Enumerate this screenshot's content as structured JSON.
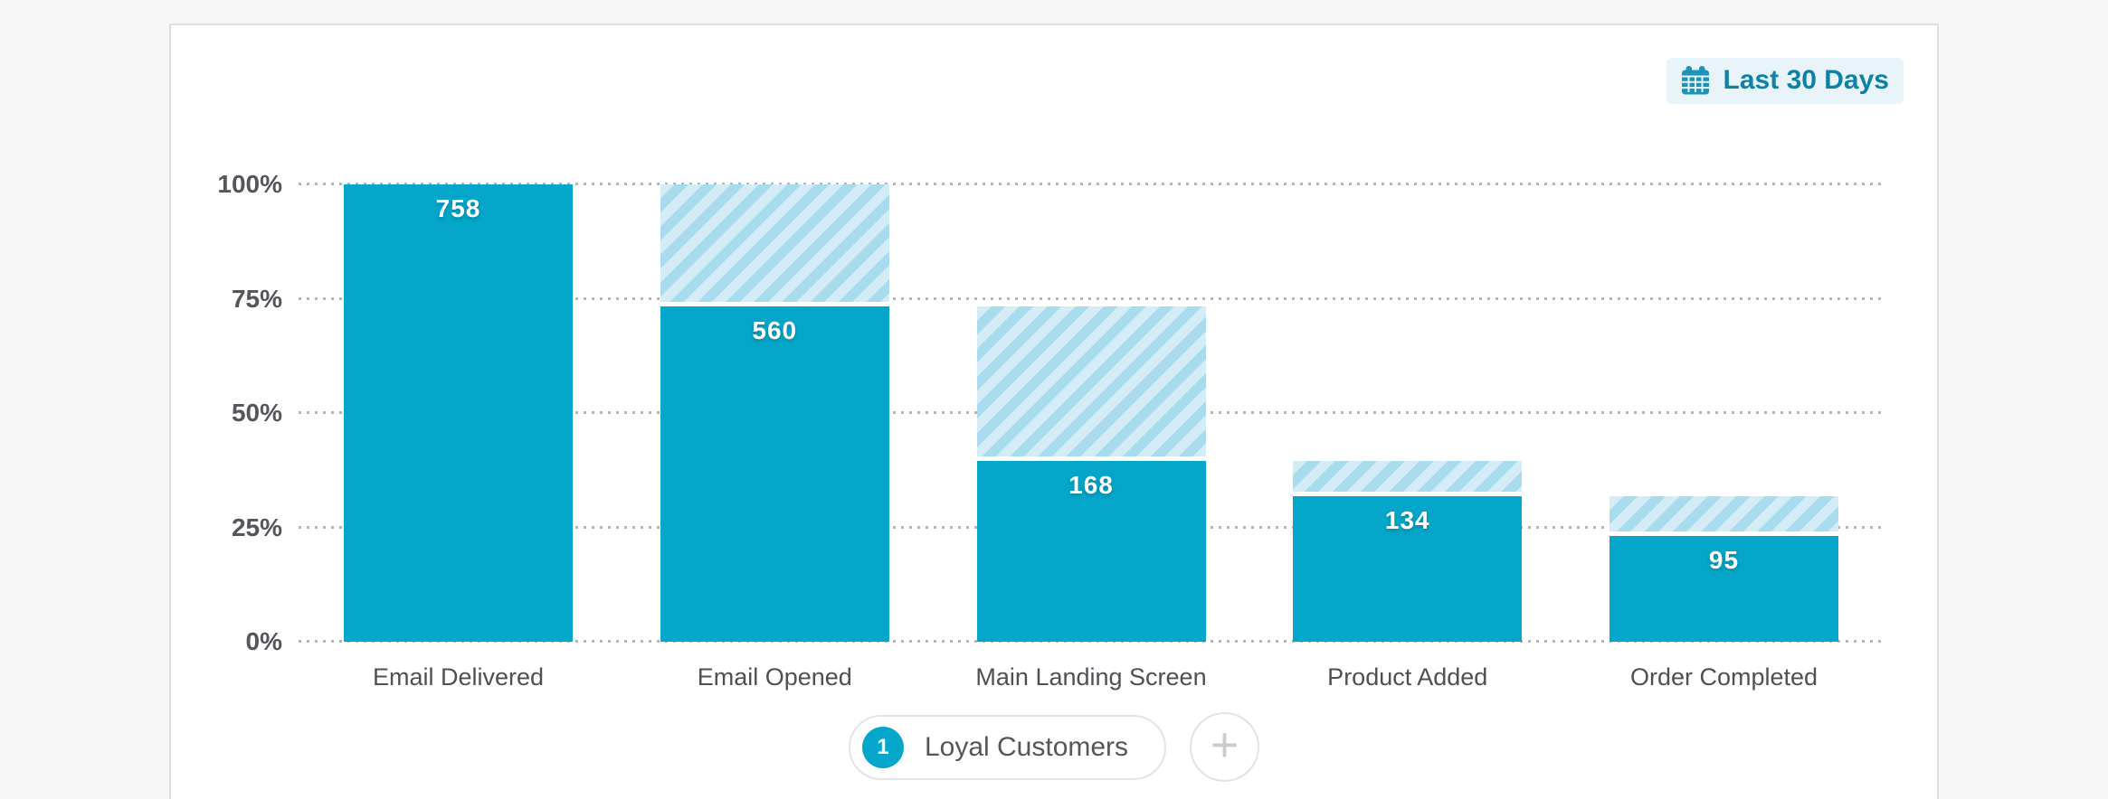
{
  "page": {
    "background": "#f7f7f8",
    "card_background": "#ffffff",
    "card_border": "#dcdee0"
  },
  "header": {
    "date_range": {
      "label": "Last 30 Days",
      "icon": "calendar-icon",
      "text_color": "#0f80a6",
      "background": "#e8f4fa"
    }
  },
  "chart_data": {
    "type": "bar",
    "title": "",
    "xlabel": "",
    "ylabel": "",
    "categories": [
      "Email Delivered",
      "Email Opened",
      "Main Landing Screen",
      "Product Added",
      "Order Completed"
    ],
    "values": [
      758,
      560,
      168,
      134,
      95
    ],
    "bar_display_pct": [
      100,
      73.3,
      39.5,
      31.8,
      23.1
    ],
    "hatch_meaning": "diagonal-striped segment above each bar spans from this step's level up to the previous step's level (drop-off)",
    "y_ticks": [
      {
        "label": "100%",
        "pct": 100
      },
      {
        "label": "75%",
        "pct": 75
      },
      {
        "label": "50%",
        "pct": 50
      },
      {
        "label": "25%",
        "pct": 25
      },
      {
        "label": "0%",
        "pct": 0
      }
    ],
    "ylim": [
      0,
      100
    ],
    "grid": "dotted-horizontal",
    "legend_position": "none",
    "bar_color": "#04a6c9",
    "hatch_colors": [
      "#d4ecf6",
      "#a8dbee"
    ],
    "value_label_color": "#ffffff",
    "axis_label_color": "#54565b"
  },
  "footer": {
    "funnel_chip": {
      "badge": "1",
      "label": "Loyal Customers",
      "badge_color": "#04a6c9"
    },
    "add_button": {
      "label": "+"
    }
  }
}
